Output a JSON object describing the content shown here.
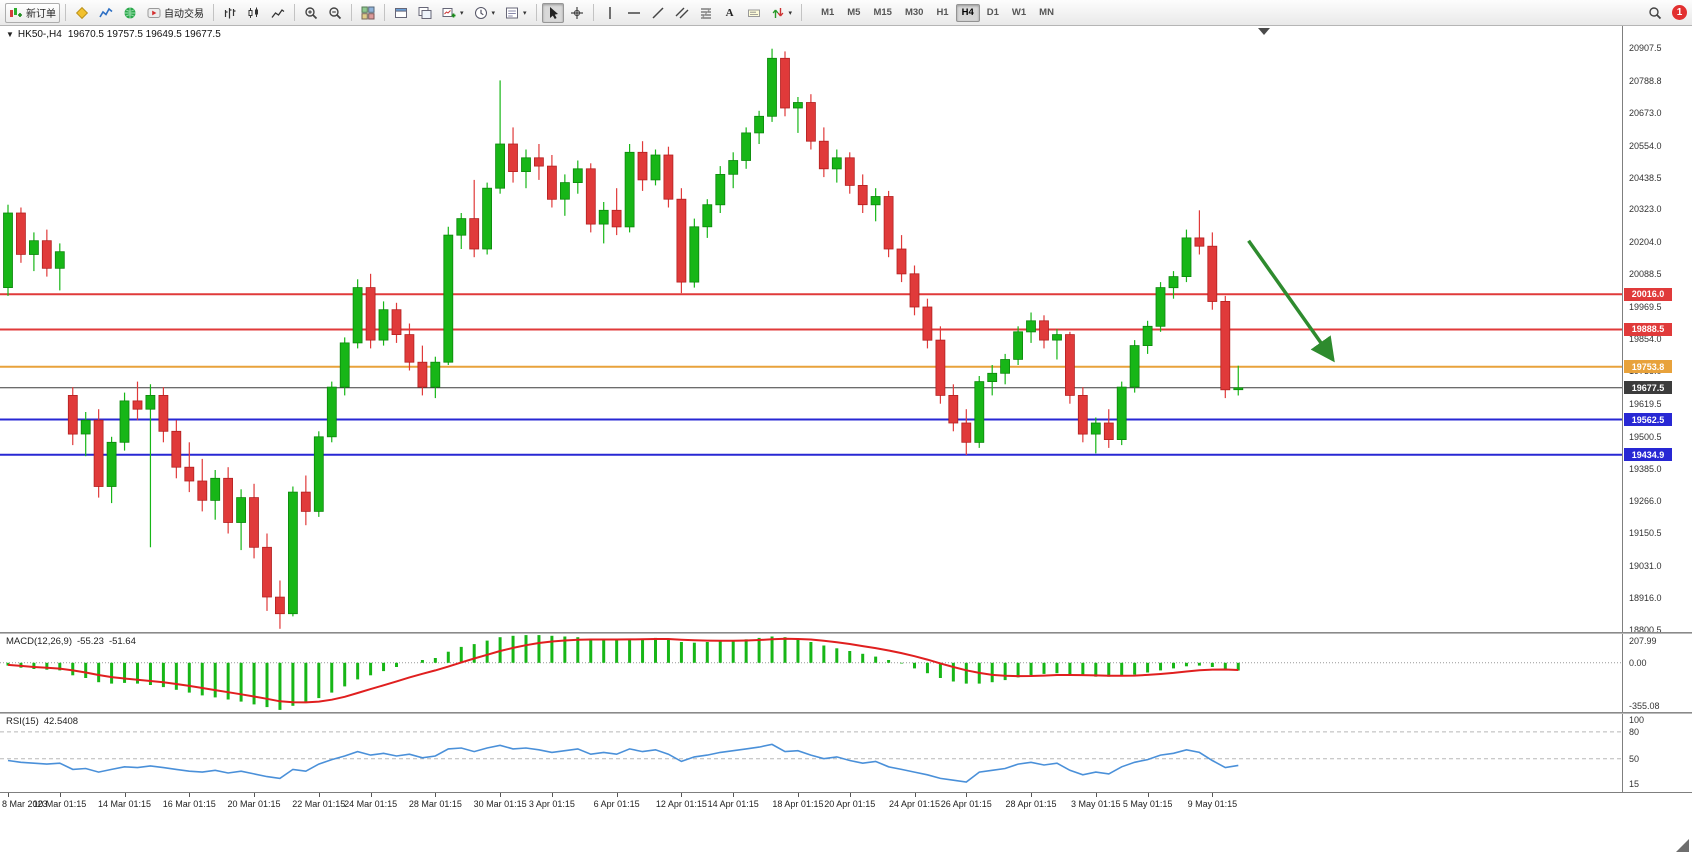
{
  "toolbar": {
    "new_order_label": "新订单",
    "autotrading_label": "自动交易",
    "text_tool_label": "A",
    "timeframes": [
      "M1",
      "M5",
      "M15",
      "M30",
      "H1",
      "H4",
      "D1",
      "W1",
      "MN"
    ],
    "active_timeframe": "H4",
    "notification_count": "1"
  },
  "chart": {
    "symbol_period": "HK50-,H4",
    "ohlc_readout": "19670.5 19757.5 19649.5 19677.5",
    "bull_color": "#17b617",
    "bear_color": "#e03a3a",
    "price_axis_ticks": [
      "20907.5",
      "20788.8",
      "20673.0",
      "20554.0",
      "20438.5",
      "20323.0",
      "20204.0",
      "20088.5",
      "19969.5",
      "19854.0",
      "19738.0",
      "19619.5",
      "19500.5",
      "19385.0",
      "19266.0",
      "19150.5",
      "19031.0",
      "18916.0",
      "18800.5"
    ],
    "hlines": [
      {
        "price": 20016.0,
        "label": "20016.0",
        "color": "#e03a3a",
        "width": 2
      },
      {
        "price": 19888.5,
        "label": "19888.5",
        "color": "#e03a3a",
        "width": 2
      },
      {
        "price": 19753.8,
        "label": "19753.8",
        "color": "#e8a23b",
        "width": 2
      },
      {
        "price": 19677.5,
        "label": "19677.5",
        "color": "#3c3c3c",
        "width": 1
      },
      {
        "price": 19562.5,
        "label": "19562.5",
        "color": "#2828d4",
        "width": 2
      },
      {
        "price": 19434.9,
        "label": "19434.9",
        "color": "#2828d4",
        "width": 2
      }
    ],
    "time_labels": [
      {
        "text": "8 Mar 2023",
        "bar": 0
      },
      {
        "text": "10 Mar 01:15",
        "bar": 4
      },
      {
        "text": "14 Mar 01:15",
        "bar": 9
      },
      {
        "text": "16 Mar 01:15",
        "bar": 14
      },
      {
        "text": "20 Mar 01:15",
        "bar": 19
      },
      {
        "text": "22 Mar 01:15",
        "bar": 24
      },
      {
        "text": "24 Mar 01:15",
        "bar": 28
      },
      {
        "text": "28 Mar 01:15",
        "bar": 33
      },
      {
        "text": "30 Mar 01:15",
        "bar": 38
      },
      {
        "text": "3 Apr 01:15",
        "bar": 42
      },
      {
        "text": "6 Apr 01:15",
        "bar": 47
      },
      {
        "text": "12 Apr 01:15",
        "bar": 52
      },
      {
        "text": "14 Apr 01:15",
        "bar": 56
      },
      {
        "text": "18 Apr 01:15",
        "bar": 61
      },
      {
        "text": "20 Apr 01:15",
        "bar": 65
      },
      {
        "text": "24 Apr 01:15",
        "bar": 70
      },
      {
        "text": "26 Apr 01:15",
        "bar": 74
      },
      {
        "text": "28 Apr 01:15",
        "bar": 79
      },
      {
        "text": "3 May 01:15",
        "bar": 84
      },
      {
        "text": "5 May 01:15",
        "bar": 88
      },
      {
        "text": "9 May 01:15",
        "bar": 93
      }
    ],
    "trend_arrow": {
      "from_bar": 95.8,
      "from_price": 20210,
      "to_bar": 102.3,
      "to_price": 19780,
      "color": "#2e8b2e"
    }
  },
  "macd": {
    "name": "MACD(12,26,9)",
    "value_main": "-55.23",
    "value_signal": "-51.64",
    "axis_ticks": [
      "207.99",
      "0.00",
      "-355.08"
    ],
    "histogram_color": "#17b617",
    "signal_color": "#e01f1f"
  },
  "rsi": {
    "name": "RSI(15)",
    "value": "42.5408",
    "axis_ticks": [
      "100",
      "80",
      "50",
      "15"
    ],
    "levels": [
      80,
      50
    ],
    "line_color": "#4a90d9"
  },
  "chart_data": [
    {
      "type": "candlestick",
      "symbol": "HK50-",
      "timeframe": "H4",
      "ylim": [
        18793.5,
        20987
      ],
      "ohlc": [
        [
          20040,
          20340,
          20010,
          20310
        ],
        [
          20310,
          20330,
          20130,
          20160
        ],
        [
          20160,
          20240,
          20100,
          20210
        ],
        [
          20210,
          20250,
          20080,
          20110
        ],
        [
          20110,
          20200,
          20030,
          20170
        ],
        [
          19650,
          19680,
          19470,
          19510
        ],
        [
          19510,
          19590,
          19430,
          19560
        ],
        [
          19560,
          19600,
          19280,
          19320
        ],
        [
          19320,
          19500,
          19260,
          19480
        ],
        [
          19480,
          19660,
          19450,
          19630
        ],
        [
          19630,
          19700,
          19560,
          19600
        ],
        [
          19600,
          19690,
          19100,
          19650
        ],
        [
          19650,
          19680,
          19480,
          19520
        ],
        [
          19520,
          19560,
          19350,
          19390
        ],
        [
          19390,
          19480,
          19300,
          19340
        ],
        [
          19340,
          19420,
          19230,
          19270
        ],
        [
          19270,
          19380,
          19200,
          19350
        ],
        [
          19350,
          19390,
          19150,
          19190
        ],
        [
          19190,
          19310,
          19090,
          19280
        ],
        [
          19280,
          19330,
          19060,
          19100
        ],
        [
          19100,
          19150,
          18870,
          18920
        ],
        [
          18920,
          18980,
          18805,
          18860
        ],
        [
          18860,
          19320,
          18850,
          19300
        ],
        [
          19300,
          19360,
          19180,
          19230
        ],
        [
          19230,
          19520,
          19210,
          19500
        ],
        [
          19500,
          19700,
          19480,
          19680
        ],
        [
          19680,
          19860,
          19650,
          19840
        ],
        [
          19840,
          20070,
          19820,
          20040
        ],
        [
          20040,
          20090,
          19820,
          19850
        ],
        [
          19850,
          19990,
          19830,
          19960
        ],
        [
          19960,
          19985,
          19840,
          19870
        ],
        [
          19870,
          19910,
          19740,
          19770
        ],
        [
          19770,
          19830,
          19650,
          19680
        ],
        [
          19680,
          19790,
          19640,
          19770
        ],
        [
          19770,
          20260,
          19760,
          20230
        ],
        [
          20230,
          20310,
          20180,
          20290
        ],
        [
          20290,
          20430,
          20150,
          20180
        ],
        [
          20180,
          20420,
          20160,
          20400
        ],
        [
          20400,
          20790,
          20380,
          20560
        ],
        [
          20560,
          20620,
          20420,
          20460
        ],
        [
          20460,
          20540,
          20400,
          20510
        ],
        [
          20510,
          20560,
          20430,
          20480
        ],
        [
          20480,
          20520,
          20330,
          20360
        ],
        [
          20360,
          20450,
          20300,
          20420
        ],
        [
          20420,
          20500,
          20380,
          20470
        ],
        [
          20470,
          20490,
          20240,
          20270
        ],
        [
          20270,
          20350,
          20200,
          20320
        ],
        [
          20320,
          20400,
          20230,
          20260
        ],
        [
          20260,
          20560,
          20240,
          20530
        ],
        [
          20530,
          20570,
          20390,
          20430
        ],
        [
          20430,
          20540,
          20410,
          20520
        ],
        [
          20520,
          20550,
          20330,
          20360
        ],
        [
          20360,
          20400,
          20020,
          20060
        ],
        [
          20060,
          20290,
          20040,
          20260
        ],
        [
          20260,
          20360,
          20220,
          20340
        ],
        [
          20340,
          20480,
          20310,
          20450
        ],
        [
          20450,
          20530,
          20400,
          20500
        ],
        [
          20500,
          20620,
          20470,
          20600
        ],
        [
          20600,
          20680,
          20560,
          20660
        ],
        [
          20660,
          20905,
          20640,
          20870
        ],
        [
          20870,
          20895,
          20660,
          20690
        ],
        [
          20690,
          20730,
          20600,
          20710
        ],
        [
          20710,
          20740,
          20540,
          20570
        ],
        [
          20570,
          20620,
          20440,
          20470
        ],
        [
          20470,
          20540,
          20420,
          20510
        ],
        [
          20510,
          20530,
          20380,
          20410
        ],
        [
          20410,
          20450,
          20310,
          20340
        ],
        [
          20340,
          20400,
          20280,
          20370
        ],
        [
          20370,
          20390,
          20150,
          20180
        ],
        [
          20180,
          20230,
          20060,
          20090
        ],
        [
          20090,
          20120,
          19940,
          19970
        ],
        [
          19970,
          20000,
          19820,
          19850
        ],
        [
          19850,
          19900,
          19620,
          19650
        ],
        [
          19650,
          19690,
          19520,
          19550
        ],
        [
          19550,
          19600,
          19434,
          19480
        ],
        [
          19480,
          19720,
          19460,
          19700
        ],
        [
          19700,
          19760,
          19650,
          19730
        ],
        [
          19730,
          19800,
          19690,
          19780
        ],
        [
          19780,
          19900,
          19760,
          19880
        ],
        [
          19880,
          19950,
          19840,
          19920
        ],
        [
          19920,
          19940,
          19820,
          19850
        ],
        [
          19850,
          19890,
          19780,
          19870
        ],
        [
          19870,
          19880,
          19620,
          19650
        ],
        [
          19650,
          19680,
          19480,
          19510
        ],
        [
          19510,
          19570,
          19440,
          19550
        ],
        [
          19550,
          19600,
          19460,
          19490
        ],
        [
          19490,
          19700,
          19470,
          19680
        ],
        [
          19680,
          19850,
          19660,
          19830
        ],
        [
          19830,
          19920,
          19800,
          19900
        ],
        [
          19900,
          20060,
          19880,
          20040
        ],
        [
          20040,
          20100,
          20000,
          20080
        ],
        [
          20080,
          20250,
          20060,
          20220
        ],
        [
          20220,
          20320,
          20160,
          20190
        ],
        [
          20190,
          20240,
          19960,
          19990
        ],
        [
          19990,
          20010,
          19640,
          19670
        ],
        [
          19670.5,
          19757.5,
          19649.5,
          19677.5
        ]
      ]
    },
    {
      "type": "bar",
      "name": "MACD histogram",
      "ylim": [
        -355.08,
        207.99
      ],
      "values": [
        -20,
        -35,
        -45,
        -50,
        -55,
        -90,
        -110,
        -140,
        -150,
        -145,
        -150,
        -160,
        -175,
        -195,
        -215,
        -235,
        -250,
        -265,
        -280,
        -300,
        -320,
        -340,
        -310,
        -290,
        -255,
        -215,
        -170,
        -120,
        -90,
        -60,
        -30,
        0,
        20,
        35,
        80,
        115,
        135,
        160,
        185,
        195,
        200,
        200,
        195,
        190,
        185,
        175,
        170,
        165,
        175,
        175,
        180,
        170,
        150,
        145,
        150,
        155,
        160,
        170,
        180,
        190,
        185,
        170,
        150,
        125,
        105,
        85,
        65,
        45,
        20,
        -5,
        -40,
        -75,
        -110,
        -135,
        -150,
        -150,
        -140,
        -125,
        -105,
        -90,
        -80,
        -75,
        -85,
        -95,
        -100,
        -100,
        -95,
        -85,
        -70,
        -55,
        -40,
        -25,
        -20,
        -30,
        -45,
        -55.23
      ]
    },
    {
      "type": "line",
      "name": "MACD signal",
      "values": [
        -15,
        -22,
        -30,
        -36,
        -42,
        -55,
        -70,
        -88,
        -103,
        -113,
        -122,
        -131,
        -141,
        -153,
        -167,
        -182,
        -197,
        -212,
        -227,
        -243,
        -260,
        -278,
        -285,
        -286,
        -280,
        -266,
        -245,
        -218,
        -190,
        -162,
        -134,
        -105,
        -79,
        -55,
        -27,
        3,
        31,
        58,
        85,
        108,
        127,
        143,
        154,
        161,
        166,
        168,
        168,
        168,
        169,
        170,
        172,
        172,
        167,
        163,
        160,
        159,
        159,
        161,
        165,
        170,
        173,
        172,
        168,
        159,
        148,
        136,
        121,
        106,
        89,
        70,
        48,
        23,
        -4,
        -30,
        -54,
        -73,
        -87,
        -94,
        -96,
        -95,
        -92,
        -88,
        -88,
        -89,
        -91,
        -93,
        -93,
        -92,
        -87,
        -81,
        -73,
        -63,
        -54,
        -49,
        -48,
        -51.64
      ]
    },
    {
      "type": "line",
      "name": "RSI(15)",
      "ylim": [
        15,
        100
      ],
      "values": [
        48,
        46,
        45,
        44,
        45,
        38,
        39,
        35,
        38,
        41,
        40,
        42,
        40,
        38,
        36,
        35,
        37,
        34,
        36,
        33,
        30,
        28,
        38,
        36,
        44,
        49,
        53,
        58,
        54,
        56,
        53,
        55,
        51,
        53,
        61,
        62,
        58,
        62,
        65,
        61,
        62,
        60,
        57,
        59,
        61,
        55,
        57,
        55,
        61,
        58,
        60,
        55,
        47,
        52,
        54,
        57,
        59,
        61,
        63,
        66,
        58,
        59,
        54,
        50,
        52,
        48,
        45,
        47,
        41,
        38,
        35,
        32,
        28,
        26,
        24,
        35,
        37,
        39,
        44,
        46,
        43,
        45,
        37,
        32,
        35,
        33,
        41,
        46,
        49,
        54,
        56,
        60,
        57,
        48,
        40,
        42.54
      ]
    }
  ]
}
